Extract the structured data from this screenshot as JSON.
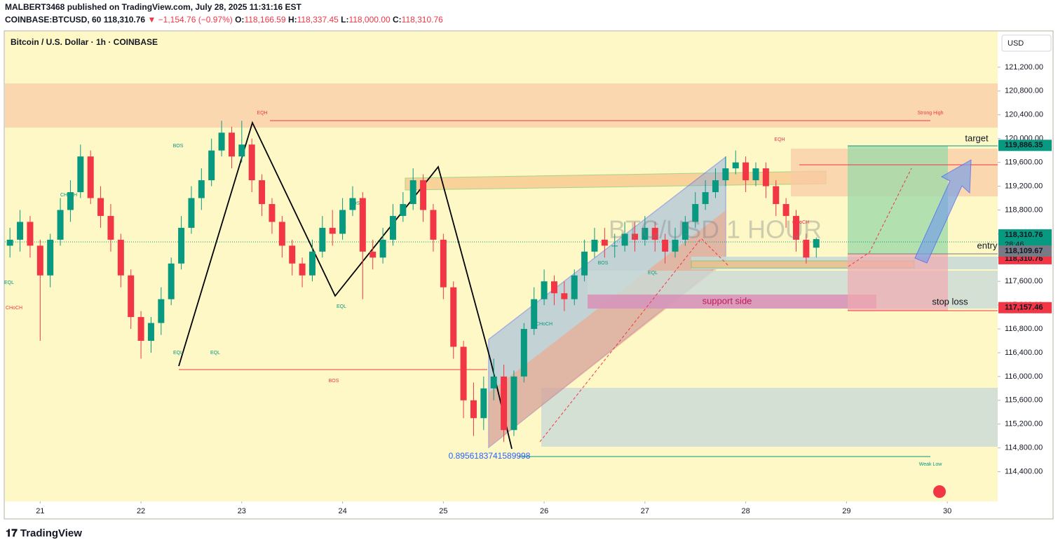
{
  "header": {
    "publisher": "MALBERT3468 published on TradingView.com, July 28, 2025 11:31:16 EST",
    "symbol": "COINBASE:BTCUSD, 60",
    "last": "118,310.76",
    "change": "▼ −1,154.76 (−0.97%)",
    "o_label": "O:",
    "o": "118,166.59",
    "h_label": "H:",
    "h": "118,337.45",
    "l_label": "L:",
    "l": "118,000.00",
    "c_label": "C:",
    "c": "118,310.76"
  },
  "footer": {
    "brand": "TradingView"
  },
  "chart_data": {
    "type": "candlestick",
    "title": "Bitcoin / U.S. Dollar · 1h · COINBASE",
    "currency": "USD",
    "up_color": "#089981",
    "down_color": "#f23645",
    "x": [
      20.7,
      20.8,
      20.9,
      21.0,
      21.1,
      21.2,
      21.3,
      21.4,
      21.5,
      21.6,
      21.7,
      21.8,
      21.9,
      22.0,
      22.1,
      22.2,
      22.3,
      22.4,
      22.5,
      22.6,
      22.7,
      22.8,
      22.9,
      23.0,
      23.1,
      23.2,
      23.3,
      23.4,
      23.5,
      23.6,
      23.7,
      23.8,
      23.9,
      24.0,
      24.1,
      24.2,
      24.3,
      24.4,
      24.5,
      24.6,
      24.7,
      24.8,
      24.9,
      25.0,
      25.1,
      25.2,
      25.3,
      25.4,
      25.5,
      25.6,
      25.7,
      25.8,
      25.9,
      26.0,
      26.1,
      26.2,
      26.3,
      26.4,
      26.5,
      26.6,
      26.7,
      26.8,
      26.9,
      27.0,
      27.1,
      27.2,
      27.3,
      27.4,
      27.5,
      27.6,
      27.7,
      27.8,
      27.9,
      28.0,
      28.1,
      28.2,
      28.3,
      28.4,
      28.5,
      28.6,
      28.7
    ],
    "open": [
      118200,
      118300,
      118600,
      118200,
      117700,
      118300,
      118800,
      119100,
      119700,
      119000,
      118700,
      118300,
      117700,
      117000,
      116600,
      116900,
      117300,
      117900,
      118500,
      119000,
      119300,
      119800,
      120100,
      119700,
      119900,
      119300,
      118900,
      118600,
      118200,
      117900,
      117700,
      118100,
      118500,
      118400,
      118800,
      119000,
      118100,
      118000,
      118300,
      118700,
      118900,
      119300,
      118800,
      118300,
      117500,
      116500,
      115600,
      115300,
      115800,
      116000,
      115100,
      116000,
      116800,
      117300,
      117600,
      117400,
      117300,
      117700,
      118100,
      118300,
      118200,
      118200,
      118400,
      118300,
      118500,
      118300,
      118100,
      118300,
      118600,
      118900,
      119100,
      119300,
      119500,
      119600,
      119300,
      119500,
      119200,
      118900,
      118700,
      118300,
      118166.59
    ],
    "high": [
      118500,
      118800,
      118700,
      118300,
      118400,
      119000,
      119300,
      119900,
      119800,
      119200,
      118900,
      118400,
      117800,
      117100,
      117000,
      117500,
      118000,
      118700,
      119200,
      119500,
      120000,
      120300,
      120200,
      120300,
      120000,
      119400,
      119000,
      118700,
      118300,
      118000,
      118300,
      118700,
      118800,
      119000,
      119200,
      119100,
      118300,
      118500,
      118900,
      119100,
      119500,
      119400,
      118900,
      118400,
      117600,
      116600,
      115900,
      116000,
      116300,
      116200,
      116100,
      116900,
      117500,
      117800,
      117700,
      117600,
      117800,
      118300,
      118500,
      118500,
      118400,
      118600,
      118600,
      118700,
      118600,
      118400,
      118500,
      118700,
      119100,
      119300,
      119500,
      119700,
      119800,
      119700,
      119600,
      119600,
      119300,
      119000,
      118800,
      118400,
      118337.45
    ],
    "low": [
      118000,
      118100,
      118000,
      116600,
      117500,
      118200,
      118600,
      119000,
      118900,
      118500,
      118100,
      117500,
      116800,
      116300,
      116400,
      116700,
      117200,
      117800,
      118400,
      118800,
      119200,
      119700,
      119500,
      119600,
      119100,
      118700,
      118400,
      118000,
      117700,
      117500,
      117600,
      118000,
      118200,
      118300,
      118700,
      117300,
      117800,
      117900,
      118200,
      118600,
      118800,
      118600,
      118100,
      117300,
      116300,
      115300,
      115000,
      115100,
      115600,
      114900,
      115000,
      115900,
      116700,
      117200,
      117200,
      117100,
      117200,
      117600,
      118000,
      118000,
      118000,
      118100,
      118100,
      118200,
      118100,
      117900,
      118000,
      118200,
      118500,
      118800,
      119000,
      119200,
      119400,
      119100,
      119200,
      119000,
      118700,
      118500,
      118100,
      117900,
      118000
    ],
    "close": [
      118300,
      118600,
      118200,
      117700,
      118300,
      118800,
      119100,
      119700,
      119000,
      118700,
      118300,
      117700,
      117000,
      116600,
      116900,
      117300,
      117900,
      118500,
      119000,
      119300,
      119800,
      120100,
      119700,
      119900,
      119300,
      118900,
      118600,
      118200,
      117900,
      117700,
      118100,
      118500,
      118400,
      118800,
      119000,
      118100,
      118000,
      118300,
      118700,
      118900,
      119300,
      118800,
      118300,
      117500,
      116500,
      115600,
      115300,
      115800,
      116000,
      115100,
      116000,
      116800,
      117300,
      117600,
      117400,
      117300,
      117700,
      118100,
      118300,
      118200,
      118200,
      118400,
      118300,
      118500,
      118300,
      118100,
      118300,
      118600,
      118900,
      119100,
      119300,
      119500,
      119600,
      119300,
      119500,
      119200,
      118900,
      118700,
      118300,
      118000,
      118310.76
    ],
    "xlim": [
      20.65,
      30.5
    ],
    "xticks": [
      21,
      22,
      23,
      24,
      25,
      26,
      27,
      28,
      29,
      30
    ],
    "ylim": [
      113900,
      121800
    ],
    "yticks": [
      {
        "value": 114400,
        "label": "114,400.00"
      },
      {
        "value": 114800,
        "label": "114,800.00"
      },
      {
        "value": 115200,
        "label": "115,200.00"
      },
      {
        "value": 115600,
        "label": "115,600.00"
      },
      {
        "value": 116000,
        "label": "116,000.00"
      },
      {
        "value": 116400,
        "label": "116,400.00"
      },
      {
        "value": 116800,
        "label": "116,800.00"
      },
      {
        "value": 117200,
        "label": "117,200.00"
      },
      {
        "value": 117600,
        "label": "117,600.00"
      },
      {
        "value": 118000,
        "label": "118,000.00"
      },
      {
        "value": 118400,
        "label": "118,400.00"
      },
      {
        "value": 118800,
        "label": "118,800.00"
      },
      {
        "value": 119200,
        "label": "119,200.00"
      },
      {
        "value": 119600,
        "label": "119,600.00"
      },
      {
        "value": 120000,
        "label": "120,000.00"
      },
      {
        "value": 120400,
        "label": "120,400.00"
      },
      {
        "value": 120800,
        "label": "120,800.00"
      },
      {
        "value": 121200,
        "label": "121,200.00"
      }
    ],
    "price_tags": [
      {
        "value": 119886.35,
        "label": "119,886.35",
        "color": "#089981"
      },
      {
        "value": 118310.76,
        "label": "118,310.76",
        "color": "#089981"
      },
      {
        "value": 118310.76,
        "label": "118,310.76",
        "color": "#f23645"
      },
      {
        "value": 118109.67,
        "label": "118,109.67",
        "color": "#787b86"
      },
      {
        "value": 117157.46,
        "label": "117,157.46",
        "color": "#f23645"
      }
    ],
    "countdown": "28:46",
    "annotations": {
      "eqh": "EQH",
      "bos": "BOS",
      "choch": "CHoCH",
      "eql": "EQL",
      "strong_high": "Strong High",
      "weak_low": "Weak Low",
      "fib": "0.8956183741589998",
      "support": "support side",
      "target": "target",
      "entry": "entry",
      "stop": "stop loss",
      "watermark": "BTC/USD 1 HOUR"
    }
  }
}
